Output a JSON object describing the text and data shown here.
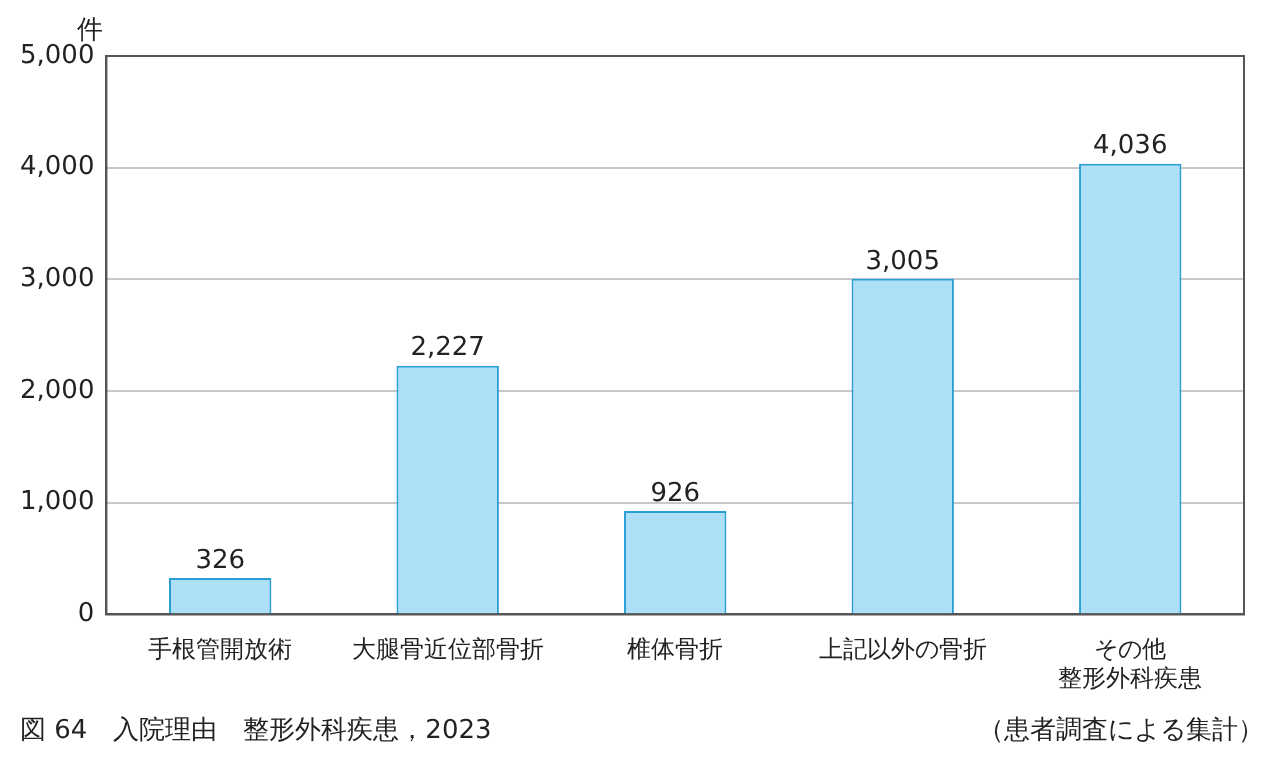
{
  "chart_data": {
    "type": "bar",
    "title": "図 64　入院理由　整形外科疾患，2023",
    "ylabel": "件",
    "categories": [
      "手根管開放術",
      "大腿骨近位部骨折",
      "椎体骨折",
      "上記以外の骨折",
      "その他整形外科疾患"
    ],
    "values": [
      326,
      2227,
      926,
      3005,
      4036
    ],
    "value_labels": [
      "326",
      "2,227",
      "926",
      "3,005",
      "4,036"
    ],
    "color": "#addff7",
    "ylim": [
      0,
      5000
    ],
    "yticks": [
      0,
      {
        "value": 1000,
        "label": "1,000"
      },
      {
        "value": 2000,
        "label": "2,000"
      },
      {
        "value": 3000,
        "label": "3,000"
      },
      {
        "value": 4000,
        "label": "4,000"
      },
      {
        "value": 5000,
        "label": "5,000"
      }
    ],
    "grid": "y",
    "annotations": [
      "（患者調査による集計）"
    ]
  }
}
